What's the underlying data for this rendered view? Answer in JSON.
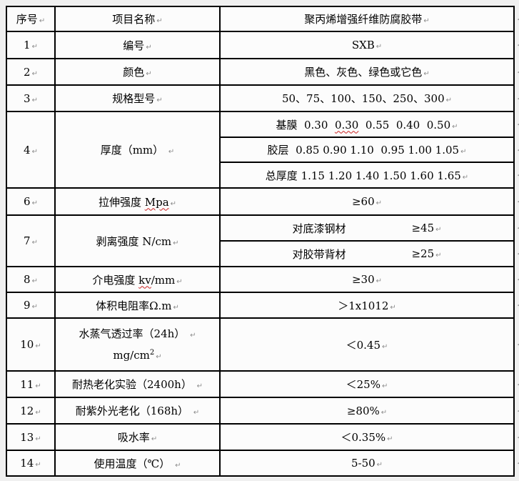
{
  "colors": {
    "page_bg": "#f0f0f0",
    "cell_bg": "#fcfcfc",
    "border": "#000000",
    "text": "#000000",
    "format_mark": "#8c8c8c",
    "spellcheck_squiggle": "#cc2222"
  },
  "marks": {
    "pilcrow": "↵",
    "row_end": "◀"
  },
  "header": {
    "col1": "序号",
    "col2": "项目名称",
    "col3": "聚丙烯增强纤维防腐胶带"
  },
  "rows": [
    {
      "no": "1",
      "name": "编号",
      "value": "SXB"
    },
    {
      "no": "2",
      "name": "颜色",
      "value": "黑色、灰色、绿色或它色"
    },
    {
      "no": "3",
      "name": "规格型号",
      "value": "50、75、100、150、250、300"
    },
    {
      "no": "4",
      "name": "厚度（mm） ",
      "sub0_pre": "基膜  0.30  ",
      "sub0_mis": "0.30",
      "sub0_post": "  0.55  0.40  0.50",
      "sub1": "胶层  0.85 0.90 1.10  0.95 1.00 1.05",
      "sub2": "总厚度 1.15 1.20 1.40 1.50 1.60 1.65"
    },
    {
      "no": "6",
      "name_pre": "拉伸强度 ",
      "name_mis": "Mpa",
      "value": "≥60"
    },
    {
      "no": "7",
      "name": "剥离强度 N/cm",
      "sub0_label": "对底漆钢材",
      "sub0_value": "≥45",
      "sub1_label": "对胶带背材",
      "sub1_value": "≥25"
    },
    {
      "no": "8",
      "name_pre": "介电强度 ",
      "name_mis": "kv",
      "name_post": "/mm",
      "value": "≥30"
    },
    {
      "no": "9",
      "name": "体积电阻率Ω.m",
      "value": "＞1x1012"
    },
    {
      "no": "10",
      "name_line1": "水蒸气透过率（24h） ",
      "name_line2": "mg/cm",
      "name_sup": "2",
      "value": "＜0.45"
    },
    {
      "no": "11",
      "name": "耐热老化实验（2400h） ",
      "value": "＜25%"
    },
    {
      "no": "12",
      "name": "耐紫外光老化（168h） ",
      "value": "≥80%"
    },
    {
      "no": "13",
      "name": "吸水率",
      "value": "＜0.35%"
    },
    {
      "no": "14",
      "name": "使用温度（℃） ",
      "value": "5-50"
    }
  ]
}
